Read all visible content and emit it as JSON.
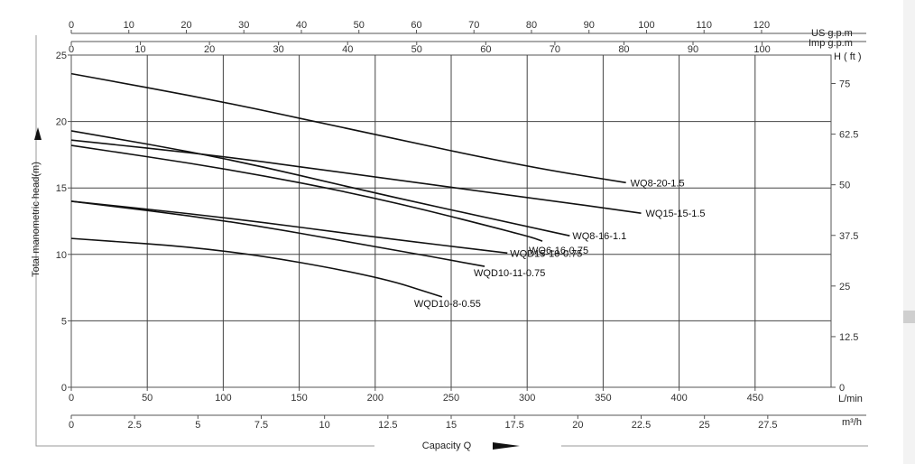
{
  "chart_data": {
    "type": "line",
    "ylabel": "Total manometric head(m)",
    "xlabel": "Capacity Q",
    "xlim": [
      0,
      500
    ],
    "ylim": [
      0,
      25
    ],
    "x_unit_label": "L/min",
    "x_ticks": [
      "0",
      "50",
      "100",
      "150",
      "200",
      "250",
      "300",
      "350",
      "400",
      "450"
    ],
    "y_ticks": [
      "0",
      "5",
      "10",
      "15",
      "20",
      "25"
    ],
    "right_axis": {
      "label": "H ( ft )",
      "ticks": [
        "0",
        "12.5",
        "25",
        "37.5",
        "50",
        "62.5",
        "75"
      ]
    },
    "top_axis_us": {
      "label": "US g.p.m",
      "ticks": [
        "0",
        "10",
        "20",
        "30",
        "40",
        "50",
        "60",
        "70",
        "80",
        "90",
        "100",
        "110",
        "120"
      ]
    },
    "top_axis_imp": {
      "label": "Imp g.p.m",
      "ticks": [
        "0",
        "10",
        "20",
        "30",
        "40",
        "50",
        "60",
        "70",
        "80",
        "90",
        "100"
      ]
    },
    "bottom_axis_m3h": {
      "label": "m³/h",
      "ticks": [
        "0",
        "2.5",
        "5",
        "7.5",
        "10",
        "12.5",
        "15",
        "17.5",
        "20",
        "22.5",
        "25",
        "27.5"
      ]
    },
    "grid": true,
    "series": [
      {
        "name": "WQ8-20-1.5",
        "x": [
          0,
          100,
          200,
          300,
          365
        ],
        "y": [
          23.6,
          21.5,
          19.0,
          16.6,
          15.4
        ]
      },
      {
        "name": "WQ15-15-1.5",
        "x": [
          0,
          100,
          200,
          300,
          375
        ],
        "y": [
          18.6,
          17.4,
          15.8,
          14.3,
          13.1
        ]
      },
      {
        "name": "WQ8-16-1.1",
        "x": [
          0,
          100,
          200,
          300,
          328
        ],
        "y": [
          19.3,
          17.3,
          14.6,
          12.1,
          11.4
        ]
      },
      {
        "name": "WQ6-16-0.75",
        "x": [
          0,
          100,
          200,
          300,
          310
        ],
        "y": [
          18.2,
          16.5,
          14.3,
          11.4,
          11.0
        ]
      },
      {
        "name": "WQD15-10-0.75",
        "x": [
          0,
          100,
          200,
          287
        ],
        "y": [
          14.0,
          12.8,
          11.3,
          10.1
        ]
      },
      {
        "name": "WQD10-11-0.75",
        "x": [
          0,
          100,
          200,
          272
        ],
        "y": [
          14.0,
          12.6,
          10.6,
          9.1
        ]
      },
      {
        "name": "WQD10-8-0.55",
        "x": [
          0,
          100,
          200,
          244
        ],
        "y": [
          11.2,
          10.4,
          8.4,
          6.8
        ]
      }
    ]
  }
}
